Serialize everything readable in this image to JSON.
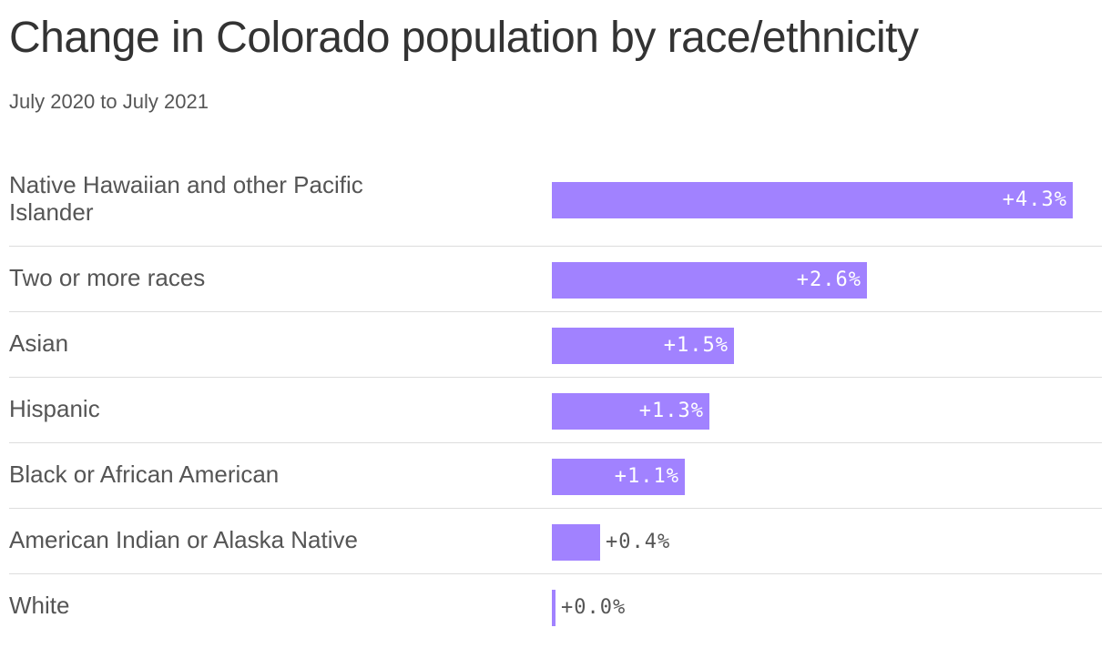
{
  "header": {
    "title": "Change in Colorado population by race/ethnicity",
    "subtitle": "July 2020 to July 2021"
  },
  "colors": {
    "bar": "#a182ff",
    "label_inside": "#ffffff",
    "label_outside": "#555555",
    "divider": "#dddddd"
  },
  "chart_data": {
    "type": "bar",
    "orientation": "horizontal",
    "title": "Change in Colorado population by race/ethnicity",
    "subtitle": "July 2020 to July 2021",
    "xlabel": "",
    "ylabel": "",
    "xlim": [
      0,
      4.3
    ],
    "grid": false,
    "legend": "none",
    "categories": [
      "Native Hawaiian and other Pacific Islander",
      "Two or more races",
      "Asian",
      "Hispanic",
      "Black or African American",
      "American Indian or Alaska Native",
      "White"
    ],
    "values": [
      4.3,
      2.6,
      1.5,
      1.3,
      1.1,
      0.4,
      0.0
    ],
    "value_labels": [
      "+4.3%",
      "+2.6%",
      "+1.5%",
      "+1.3%",
      "+1.1%",
      "+0.4%",
      "+0.0%"
    ]
  }
}
